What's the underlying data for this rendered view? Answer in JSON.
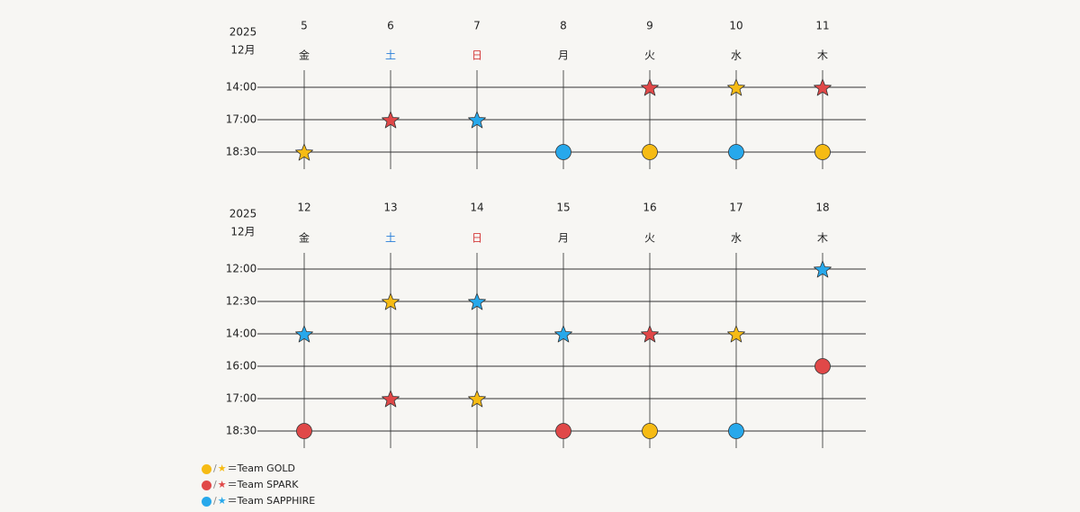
{
  "colors": {
    "gold": "#f6bb14",
    "spark": "#e04848",
    "sapphire": "#27a8eb",
    "saturday": "#2b7fd8",
    "sunday": "#d43b3b",
    "weekday": "#222222",
    "grid": "#333333"
  },
  "legend": [
    {
      "team": "gold",
      "label": "＝Team GOLD"
    },
    {
      "team": "spark",
      "label": "＝Team SPARK"
    },
    {
      "team": "sapphire",
      "label": "＝Team SAPPHIRE"
    }
  ],
  "icons": {
    "circle": "circle-icon",
    "star": "star-icon"
  },
  "weeks": [
    {
      "year": "2025",
      "month": "12月",
      "days": [
        {
          "date": "5",
          "dow": "金",
          "kind": "weekday"
        },
        {
          "date": "6",
          "dow": "土",
          "kind": "saturday"
        },
        {
          "date": "7",
          "dow": "日",
          "kind": "sunday"
        },
        {
          "date": "8",
          "dow": "月",
          "kind": "weekday"
        },
        {
          "date": "9",
          "dow": "火",
          "kind": "weekday"
        },
        {
          "date": "10",
          "dow": "水",
          "kind": "weekday"
        },
        {
          "date": "11",
          "dow": "木",
          "kind": "weekday"
        }
      ],
      "times": [
        "14:00",
        "17:00",
        "18:30"
      ],
      "events": [
        {
          "day": 4,
          "time": 0,
          "shape": "star",
          "team": "spark"
        },
        {
          "day": 5,
          "time": 0,
          "shape": "star",
          "team": "gold"
        },
        {
          "day": 6,
          "time": 0,
          "shape": "star",
          "team": "spark"
        },
        {
          "day": 1,
          "time": 1,
          "shape": "star",
          "team": "spark"
        },
        {
          "day": 2,
          "time": 1,
          "shape": "star",
          "team": "sapphire"
        },
        {
          "day": 0,
          "time": 2,
          "shape": "star",
          "team": "gold"
        },
        {
          "day": 3,
          "time": 2,
          "shape": "circle",
          "team": "sapphire"
        },
        {
          "day": 4,
          "time": 2,
          "shape": "circle",
          "team": "gold"
        },
        {
          "day": 5,
          "time": 2,
          "shape": "circle",
          "team": "sapphire"
        },
        {
          "day": 6,
          "time": 2,
          "shape": "circle",
          "team": "gold"
        }
      ]
    },
    {
      "year": "2025",
      "month": "12月",
      "days": [
        {
          "date": "12",
          "dow": "金",
          "kind": "weekday"
        },
        {
          "date": "13",
          "dow": "土",
          "kind": "saturday"
        },
        {
          "date": "14",
          "dow": "日",
          "kind": "sunday"
        },
        {
          "date": "15",
          "dow": "月",
          "kind": "weekday"
        },
        {
          "date": "16",
          "dow": "火",
          "kind": "weekday"
        },
        {
          "date": "17",
          "dow": "水",
          "kind": "weekday"
        },
        {
          "date": "18",
          "dow": "木",
          "kind": "weekday"
        }
      ],
      "times": [
        "12:00",
        "12:30",
        "14:00",
        "16:00",
        "17:00",
        "18:30"
      ],
      "events": [
        {
          "day": 6,
          "time": 0,
          "shape": "star",
          "team": "sapphire"
        },
        {
          "day": 1,
          "time": 1,
          "shape": "star",
          "team": "gold"
        },
        {
          "day": 2,
          "time": 1,
          "shape": "star",
          "team": "sapphire"
        },
        {
          "day": 0,
          "time": 2,
          "shape": "star",
          "team": "sapphire"
        },
        {
          "day": 3,
          "time": 2,
          "shape": "star",
          "team": "sapphire"
        },
        {
          "day": 4,
          "time": 2,
          "shape": "star",
          "team": "spark"
        },
        {
          "day": 5,
          "time": 2,
          "shape": "star",
          "team": "gold"
        },
        {
          "day": 6,
          "time": 3,
          "shape": "circle",
          "team": "spark"
        },
        {
          "day": 1,
          "time": 4,
          "shape": "star",
          "team": "spark"
        },
        {
          "day": 2,
          "time": 4,
          "shape": "star",
          "team": "gold"
        },
        {
          "day": 0,
          "time": 5,
          "shape": "circle",
          "team": "spark"
        },
        {
          "day": 3,
          "time": 5,
          "shape": "circle",
          "team": "spark"
        },
        {
          "day": 4,
          "time": 5,
          "shape": "circle",
          "team": "gold"
        },
        {
          "day": 5,
          "time": 5,
          "shape": "circle",
          "team": "sapphire"
        }
      ]
    }
  ]
}
